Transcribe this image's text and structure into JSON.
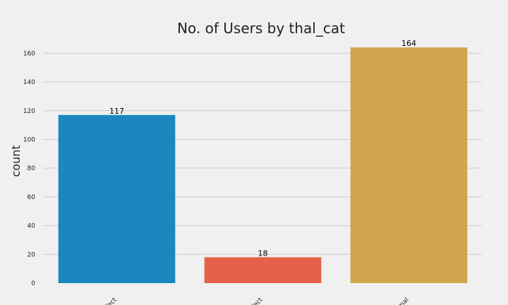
{
  "chart_data": {
    "type": "bar",
    "title": "No. of Users by thal_cat",
    "xlabel": "",
    "ylabel": "count",
    "categories": [
      "defect",
      "defect",
      "normal"
    ],
    "values": [
      117,
      18,
      164
    ],
    "data_labels": [
      "117",
      "18",
      "164"
    ],
    "colors": [
      "#1b87be",
      "#e6614a",
      "#d0a54d"
    ],
    "ylim": [
      0,
      170
    ],
    "yticks": [
      0,
      20,
      40,
      60,
      80,
      100,
      120,
      140,
      160
    ],
    "grid": true,
    "background": "#f0f0f0"
  }
}
